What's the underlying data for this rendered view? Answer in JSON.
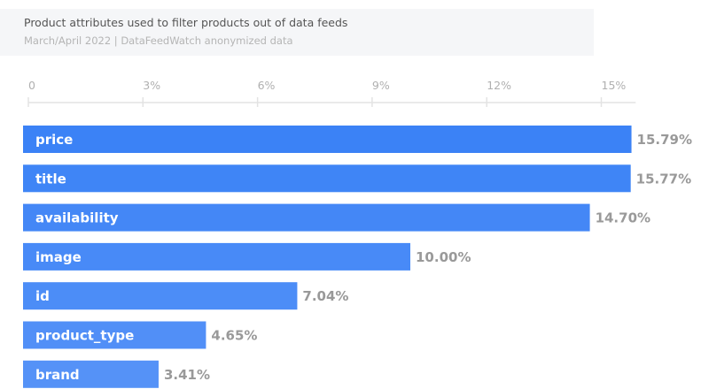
{
  "chart_data": {
    "type": "bar",
    "orientation": "horizontal",
    "title": "Product attributes used to filter products out of data feeds",
    "subtitle": "March/April 2022 | DataFeedWatch anonymized data",
    "categories": [
      "price",
      "title",
      "availability",
      "image",
      "id",
      "product_type",
      "brand"
    ],
    "values": [
      15.79,
      15.77,
      14.7,
      10.0,
      7.04,
      4.65,
      3.41
    ],
    "value_labels": [
      "15.79%",
      "15.77%",
      "14.70%",
      "10.00%",
      "7.04%",
      "4.65%",
      "3.41%"
    ],
    "ticks": [
      0,
      3,
      6,
      9,
      12,
      15
    ],
    "tick_labels": [
      "0",
      "3%",
      "6%",
      "9%",
      "12%",
      "15%"
    ],
    "xlim": [
      0,
      15.9
    ],
    "axis_position": "top",
    "grid": false,
    "colors": {
      "bar_dark": "#3b82f6",
      "bar_light": "#5592f7",
      "label": "#ffffff",
      "value": "#999999",
      "axis": "#e3e3e3",
      "tick_text": "#b0b0b0"
    }
  }
}
